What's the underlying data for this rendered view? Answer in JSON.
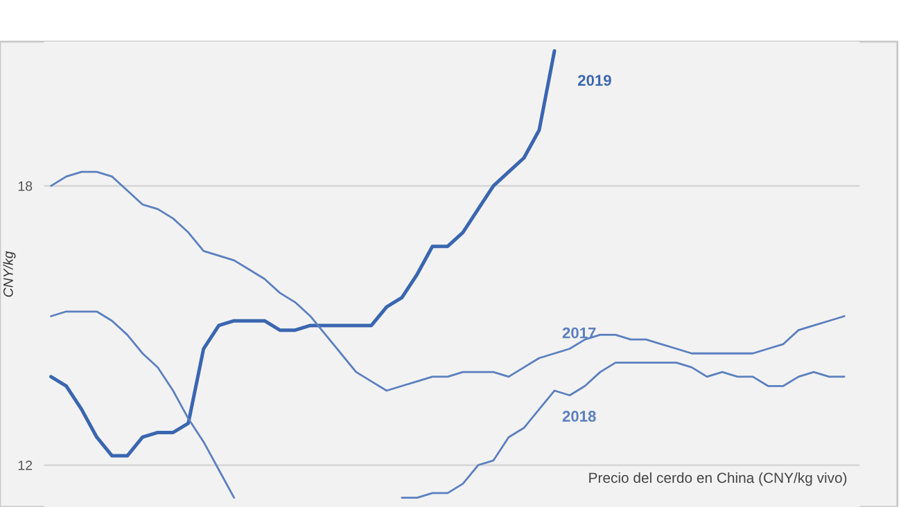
{
  "chart_data": {
    "type": "line",
    "ylabel": "CNY/kg",
    "categories": [
      null,
      null,
      null,
      null,
      null,
      null,
      null,
      null,
      null,
      null,
      null,
      null,
      null,
      null,
      null,
      null,
      null,
      null,
      null,
      null,
      null,
      null,
      null,
      null,
      null,
      null,
      null,
      null,
      null,
      null,
      null,
      null,
      null,
      null,
      null,
      null,
      null,
      null,
      null,
      null,
      null,
      null,
      null,
      null,
      null,
      null,
      null,
      null,
      null,
      null,
      null,
      null,
      null
    ],
    "series": [
      {
        "name": "2019",
        "color": "#3a66b0",
        "values": [
          13.9,
          13.7,
          13.2,
          12.6,
          12.2,
          12.2,
          12.6,
          12.7,
          12.7,
          12.9,
          14.5,
          15.0,
          15.1,
          15.1,
          15.1,
          14.9,
          14.9,
          15.0,
          15.0,
          15.0,
          15.0,
          15.0,
          15.4,
          15.6,
          16.1,
          16.7,
          16.7,
          17.0,
          17.5,
          18.0,
          18.3,
          18.6,
          19.2,
          20.9,
          null,
          null,
          null,
          null,
          null,
          null,
          null,
          null,
          null,
          null,
          null,
          null,
          null,
          null,
          null,
          null,
          null,
          null,
          null
        ]
      },
      {
        "name": "2017",
        "color": "#5b7fbf",
        "values": [
          18.0,
          18.2,
          18.3,
          18.3,
          18.2,
          17.9,
          17.6,
          17.5,
          17.3,
          17.0,
          16.6,
          16.5,
          16.4,
          16.2,
          16.0,
          15.7,
          15.5,
          15.2,
          14.8,
          14.4,
          14.0,
          13.8,
          13.6,
          13.7,
          13.8,
          13.9,
          13.9,
          14.0,
          14.0,
          14.0,
          13.9,
          14.1,
          14.3,
          14.4,
          14.5,
          14.7,
          14.8,
          14.8,
          14.7,
          14.7,
          14.6,
          14.5,
          14.4,
          14.4,
          14.4,
          14.4,
          14.4,
          14.5,
          14.6,
          14.9,
          15.0,
          15.1,
          15.2
        ]
      },
      {
        "name": "2018",
        "color": "#5b7fbf",
        "values": [
          15.2,
          15.3,
          15.3,
          15.3,
          15.1,
          14.8,
          14.4,
          14.1,
          13.6,
          13.0,
          12.5,
          11.9,
          11.3,
          null,
          null,
          null,
          null,
          null,
          null,
          null,
          null,
          null,
          null,
          11.3,
          11.3,
          11.4,
          11.4,
          11.6,
          12.0,
          12.1,
          12.6,
          12.8,
          13.2,
          13.6,
          13.5,
          13.7,
          14.0,
          14.2,
          14.2,
          14.2,
          14.2,
          14.2,
          14.1,
          13.9,
          14.0,
          13.9,
          13.9,
          13.7,
          13.7,
          13.9,
          14.0,
          13.9,
          13.9
        ]
      }
    ],
    "ylim": [
      11.1,
      21.1
    ],
    "yticks": [
      12,
      18
    ],
    "grid": "y",
    "tick_labels": "y",
    "annotations": [
      "Precio del cerdo en China (CNY/kg vivo)"
    ]
  }
}
